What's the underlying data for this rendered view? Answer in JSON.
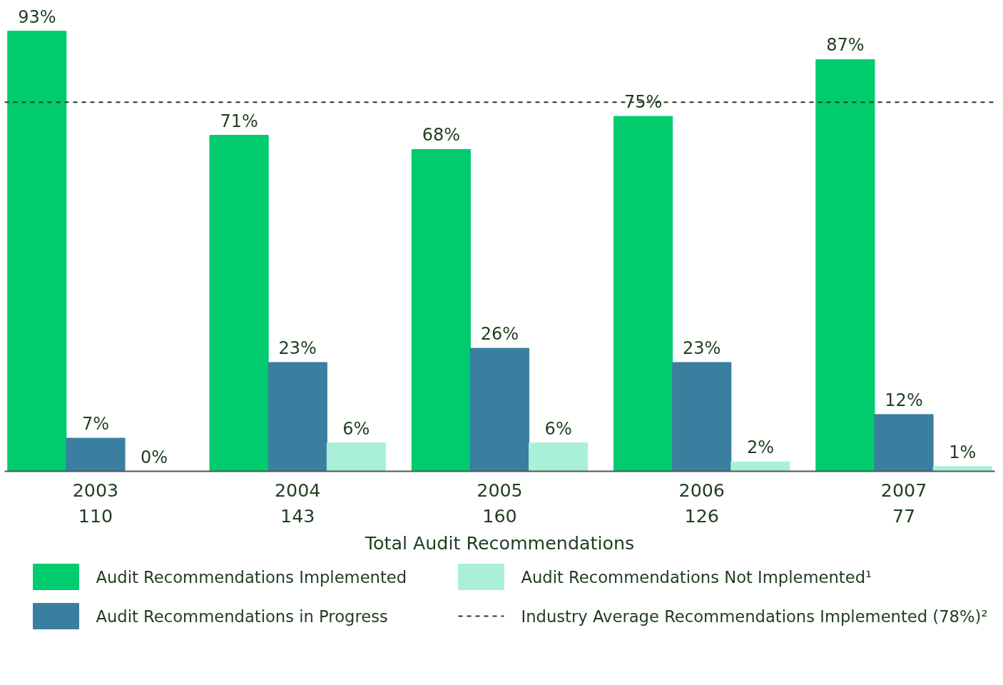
{
  "chart_data": {
    "type": "bar",
    "categories": [
      "2003\n110",
      "2004\n143",
      "2005\n160",
      "2006\n126",
      "2007\n77"
    ],
    "xlabel": "Total Audit Recommendations",
    "series": [
      {
        "name": "Audit Recommendations Implemented",
        "color": "#00cc6e",
        "values": [
          93,
          71,
          68,
          75,
          87
        ],
        "value_labels": [
          "93%",
          "71%",
          "68%",
          "75%",
          "87%"
        ]
      },
      {
        "name": "Audit Recommendations in Progress",
        "color": "#3a7fa0",
        "values": [
          7,
          23,
          26,
          23,
          12
        ],
        "value_labels": [
          "7%",
          "23%",
          "26%",
          "23%",
          "12%"
        ]
      },
      {
        "name": "Audit Recommendations Not Implemented¹",
        "color": "#aaf0d8",
        "values": [
          0,
          6,
          6,
          2,
          1
        ],
        "value_labels": [
          "0%",
          "6%",
          "6%",
          "2%",
          "1%"
        ]
      }
    ],
    "ref_lines": [
      {
        "axis": "y",
        "value": 78,
        "label": "Industry Average Recommendations Implemented (78%)²",
        "color": "#1f3d1f",
        "line_style": "dashed"
      }
    ],
    "tick_labels": "x",
    "grid": false,
    "legend": "bottom"
  }
}
